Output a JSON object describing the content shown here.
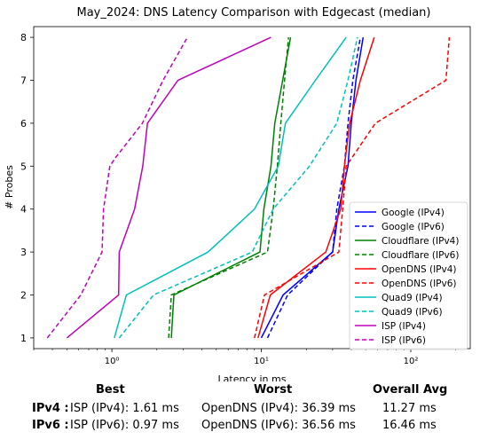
{
  "chart_data": {
    "type": "line",
    "title": "May_2024: DNS Latency Comparison with Edgecast (median)",
    "xlabel": "Latency in ms",
    "ylabel": "# Probes",
    "xscale": "log",
    "xlim": [
      0.3,
      250
    ],
    "ylim": [
      0.75,
      8.25
    ],
    "xticks": [
      {
        "value": 1,
        "label": "10⁰"
      },
      {
        "value": 10,
        "label": "10¹"
      },
      {
        "value": 100,
        "label": "10²"
      }
    ],
    "yticks": [
      1,
      2,
      3,
      4,
      5,
      6,
      7,
      8
    ],
    "grid": false,
    "legend_position": "lower-right",
    "series": [
      {
        "name": "Google (IPv4)",
        "color": "#0000ff",
        "dash": "solid",
        "points": [
          [
            10,
            1
          ],
          [
            14,
            2
          ],
          [
            30,
            3
          ],
          [
            33,
            4
          ],
          [
            38,
            5
          ],
          [
            40,
            6
          ],
          [
            43,
            7
          ],
          [
            48,
            8
          ]
        ]
      },
      {
        "name": "Google (IPv6)",
        "color": "#0000ff",
        "dash": "dashed",
        "points": [
          [
            11,
            1
          ],
          [
            15,
            2
          ],
          [
            30,
            3
          ],
          [
            32,
            4
          ],
          [
            36,
            5
          ],
          [
            38,
            6
          ],
          [
            41,
            7
          ],
          [
            46,
            8
          ]
        ]
      },
      {
        "name": "Cloudflare (IPv4)",
        "color": "#008000",
        "dash": "solid",
        "points": [
          [
            2.5,
            1
          ],
          [
            2.6,
            2
          ],
          [
            9.8,
            3
          ],
          [
            10.4,
            4
          ],
          [
            11.6,
            5
          ],
          [
            12.3,
            6
          ],
          [
            13.9,
            7
          ],
          [
            15.7,
            8
          ]
        ]
      },
      {
        "name": "Cloudflare (IPv6)",
        "color": "#008000",
        "dash": "dashed",
        "points": [
          [
            2.4,
            1
          ],
          [
            2.5,
            2
          ],
          [
            11,
            3
          ],
          [
            12,
            4
          ],
          [
            12.8,
            5
          ],
          [
            13.5,
            6
          ],
          [
            14.3,
            7
          ],
          [
            15.2,
            8
          ]
        ]
      },
      {
        "name": "OpenDNS (IPv4)",
        "color": "#ff0000",
        "dash": "solid",
        "points": [
          [
            9.5,
            1
          ],
          [
            11.5,
            2
          ],
          [
            27,
            3
          ],
          [
            34,
            4
          ],
          [
            36,
            5
          ],
          [
            39,
            6
          ],
          [
            46,
            7
          ],
          [
            57,
            8
          ]
        ]
      },
      {
        "name": "OpenDNS (IPv6)",
        "color": "#ff0000",
        "dash": "dashed",
        "points": [
          [
            9,
            1
          ],
          [
            10.5,
            2
          ],
          [
            33,
            3
          ],
          [
            35,
            4
          ],
          [
            37,
            5
          ],
          [
            58,
            6
          ],
          [
            172,
            7
          ],
          [
            181,
            8
          ]
        ]
      },
      {
        "name": "Quad9 (IPv4)",
        "color": "#00bfbf",
        "dash": "solid",
        "points": [
          [
            1.04,
            1
          ],
          [
            1.25,
            2
          ],
          [
            4.4,
            3
          ],
          [
            9,
            4
          ],
          [
            13,
            5
          ],
          [
            14.5,
            6
          ],
          [
            23,
            7
          ],
          [
            37,
            8
          ]
        ]
      },
      {
        "name": "Quad9 (IPv6)",
        "color": "#00bfbf",
        "dash": "dashed",
        "points": [
          [
            1.12,
            1
          ],
          [
            1.9,
            2
          ],
          [
            8.7,
            3
          ],
          [
            12,
            4
          ],
          [
            21,
            5
          ],
          [
            32,
            6
          ],
          [
            38,
            7
          ],
          [
            44,
            8
          ]
        ]
      },
      {
        "name": "ISP (IPv4)",
        "color": "#bf00bf",
        "dash": "solid",
        "points": [
          [
            0.5,
            1
          ],
          [
            1.11,
            2
          ],
          [
            1.12,
            3
          ],
          [
            1.42,
            4
          ],
          [
            1.61,
            5
          ],
          [
            1.73,
            6
          ],
          [
            2.77,
            7
          ],
          [
            11.6,
            8
          ]
        ]
      },
      {
        "name": "ISP (IPv6)",
        "color": "#bf00bf",
        "dash": "dashed",
        "points": [
          [
            0.37,
            1
          ],
          [
            0.62,
            2
          ],
          [
            0.86,
            3
          ],
          [
            0.88,
            4
          ],
          [
            0.97,
            5
          ],
          [
            1.06,
            5.2
          ],
          [
            1.6,
            6
          ],
          [
            2.2,
            7
          ],
          [
            3.2,
            8
          ]
        ]
      }
    ]
  },
  "summary": {
    "headers": {
      "best": "Best",
      "worst": "Worst",
      "avg": "Overall Avg"
    },
    "rows": [
      {
        "label": "IPv4 :",
        "best": "ISP (IPv4): 1.61 ms",
        "worst": "OpenDNS (IPv4): 36.39 ms",
        "avg": "11.27 ms"
      },
      {
        "label": "IPv6 :",
        "best": "ISP (IPv6): 0.97 ms",
        "worst": "OpenDNS (IPv6): 36.56 ms",
        "avg": "16.46 ms"
      }
    ]
  }
}
